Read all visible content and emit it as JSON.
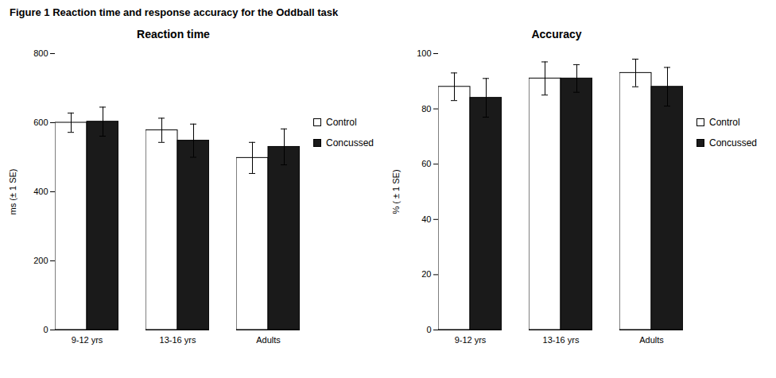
{
  "title": "Figure 1 Reaction time and response accuracy for the Oddball task",
  "chart_data": [
    {
      "type": "bar",
      "title": "Reaction time",
      "ylabel": "ms (± 1 SE)",
      "categories": [
        "9-12 yrs",
        "13-16 yrs",
        "Adults"
      ],
      "series": [
        {
          "name": "Control",
          "color": "#ffffff",
          "values": [
            600,
            578,
            498
          ],
          "errors": [
            28,
            35,
            45
          ]
        },
        {
          "name": "Concussed",
          "color": "#1a1a1a",
          "values": [
            603,
            548,
            530
          ],
          "errors": [
            42,
            48,
            52
          ]
        }
      ],
      "ylim": [
        0,
        800
      ],
      "yticks": [
        0,
        200,
        400,
        600,
        800
      ],
      "grid": false,
      "legend": "right"
    },
    {
      "type": "bar",
      "title": "Accuracy",
      "ylabel": "% ( ± 1 SE)",
      "categories": [
        "9-12 yrs",
        "13-16 yrs",
        "Adults"
      ],
      "series": [
        {
          "name": "Control",
          "color": "#ffffff",
          "values": [
            88,
            91,
            93
          ],
          "errors": [
            5,
            6,
            5
          ]
        },
        {
          "name": "Concussed",
          "color": "#1a1a1a",
          "values": [
            84,
            91,
            88
          ],
          "errors": [
            7,
            5,
            7
          ]
        }
      ],
      "ylim": [
        0,
        100
      ],
      "yticks": [
        0,
        20,
        40,
        60,
        80,
        100
      ],
      "grid": false,
      "legend": "right"
    }
  ]
}
